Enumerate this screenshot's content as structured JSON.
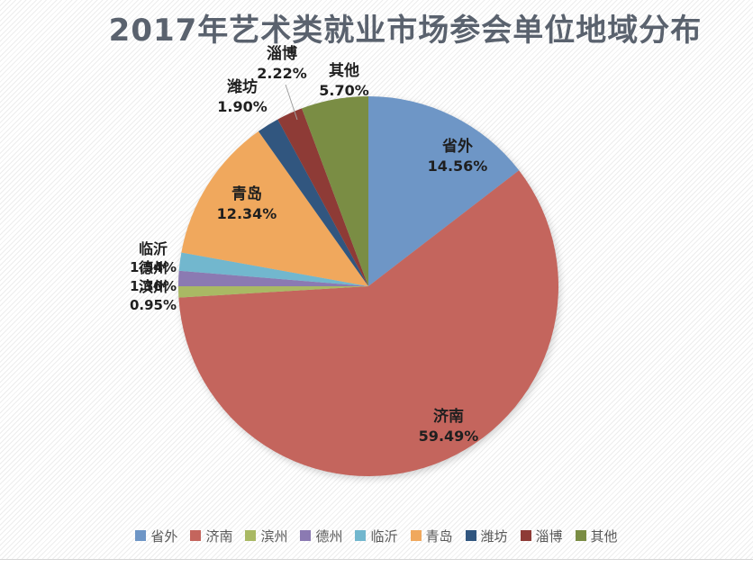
{
  "title": "2017年艺术类就业市场参会单位地域分布",
  "chart_data": {
    "type": "pie",
    "title": "2017年艺术类就业市场参会单位地域分布",
    "legend_position": "bottom",
    "slices": [
      {
        "name": "省外",
        "value": 14.56,
        "label": "14.56%",
        "color": "#6E96C6"
      },
      {
        "name": "济南",
        "value": 59.49,
        "label": "59.49%",
        "color": "#C4655D"
      },
      {
        "name": "滨州",
        "value": 0.95,
        "label": "0.95%",
        "color": "#A9B964"
      },
      {
        "name": "德州",
        "value": 1.3,
        "label": "1.30%",
        "color": "#8B7AB2"
      },
      {
        "name": "临沂",
        "value": 1.54,
        "label": "1.54%",
        "color": "#72B7CE"
      },
      {
        "name": "青岛",
        "value": 12.34,
        "label": "12.34%",
        "color": "#F0A85D"
      },
      {
        "name": "潍坊",
        "value": 1.9,
        "label": "1.90%",
        "color": "#31567F"
      },
      {
        "name": "淄博",
        "value": 2.22,
        "label": "2.22%",
        "color": "#8E3B36"
      },
      {
        "name": "其他",
        "value": 5.7,
        "label": "5.70%",
        "color": "#7A8D44"
      }
    ]
  }
}
